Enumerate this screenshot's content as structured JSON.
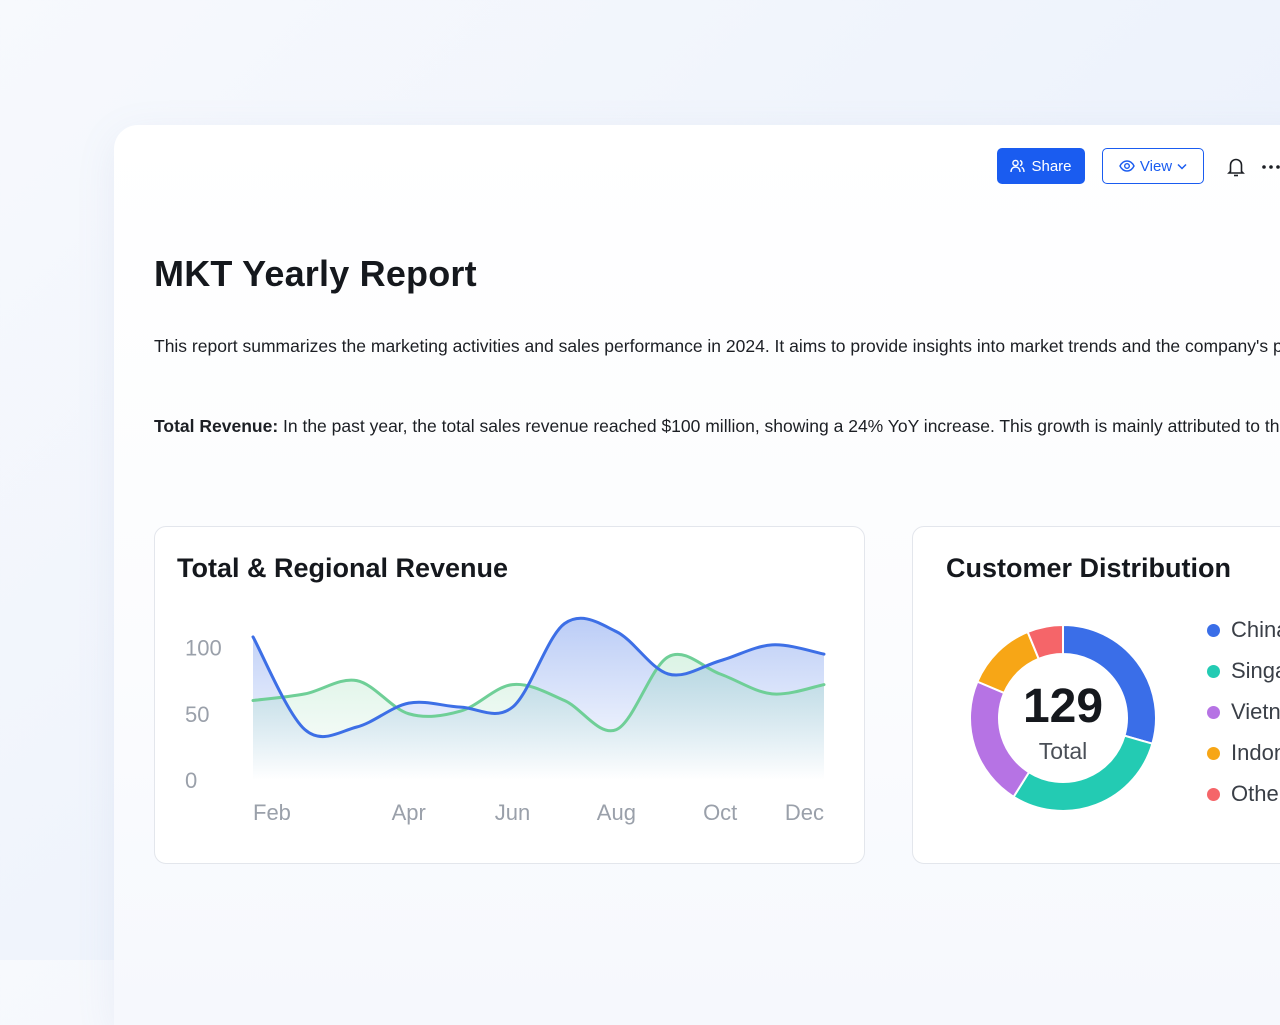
{
  "toolbar": {
    "share_label": "Share",
    "view_label": "View",
    "icons": [
      "users-icon",
      "eye-icon",
      "chevron-down-icon",
      "bell-icon",
      "more-horizontal-icon"
    ],
    "colors": {
      "primary": "#1a5cf0"
    }
  },
  "report": {
    "title": "MKT Yearly Report",
    "paragraph1": "This report summarizes the marketing activities and sales performance in 2024. It aims to provide insights into market trends and the company's performance, guiding future strategies.",
    "paragraph2_label": "Total Revenue:",
    "paragraph2_text": " In the past year, the total sales revenue reached $100 million, showing a 24% YoY increase. This growth is mainly attributed to the successful launch of new products and expanded market share."
  },
  "revenue_card": {
    "title": "Total & Regional Revenue"
  },
  "customer_card": {
    "title": "Customer Distribution",
    "total_value": "129",
    "total_label": "Total"
  },
  "chart_data": [
    {
      "type": "area",
      "title": "Total & Regional Revenue",
      "x_ticks": [
        "Feb",
        "Apr",
        "Jun",
        "Aug",
        "Oct",
        "Dec"
      ],
      "y_ticks": [
        "0",
        "50",
        "100"
      ],
      "ylim": [
        0,
        120
      ],
      "grid": false,
      "x": [
        1,
        2,
        3,
        4,
        5,
        6,
        7,
        8,
        9,
        10,
        11,
        12
      ],
      "series": [
        {
          "color": "#3d6fe6",
          "values": [
            108,
            38,
            40,
            58,
            55,
            55,
            118,
            112,
            80,
            90,
            102,
            95
          ]
        },
        {
          "color": "#6fcf97",
          "values": [
            60,
            65,
            75,
            50,
            52,
            72,
            60,
            38,
            93,
            80,
            65,
            72
          ]
        }
      ]
    },
    {
      "type": "pie",
      "title": "Customer Distribution",
      "total": 129,
      "labels": [
        "China",
        "Singapore",
        "Vietnam",
        "Indonesia",
        "Others"
      ],
      "values": [
        38,
        38,
        29,
        16,
        8
      ],
      "colors": [
        "#3a6ee8",
        "#23cbb3",
        "#b673e4",
        "#f7a616",
        "#f56569"
      ]
    }
  ]
}
